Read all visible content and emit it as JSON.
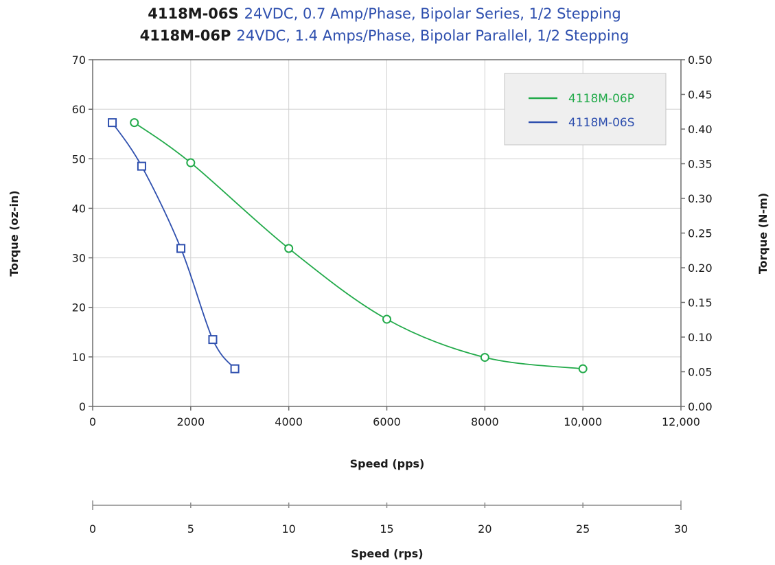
{
  "title_lines": [
    {
      "model": "4118M-06S",
      "desc": "24VDC, 0.7 Amp/Phase, Bipolar Series, 1/2 Stepping"
    },
    {
      "model": "4118M-06P",
      "desc": "24VDC, 1.4 Amps/Phase, Bipolar Parallel, 1/2 Stepping"
    }
  ],
  "colors": {
    "green": "#22aa4a",
    "blue": "#2e4fae",
    "grid": "#d0d0d0",
    "axis": "#6b6b6b"
  },
  "chart_data": {
    "type": "line",
    "xlabel": "Speed (pps)",
    "ylabel": "Torque (oz-in)",
    "y2label": "Torque (N-m)",
    "x2label": "Speed (rps)",
    "xlim": [
      0,
      12000
    ],
    "ylim": [
      0,
      70
    ],
    "y2lim": [
      0,
      0.5
    ],
    "x2lim": [
      0,
      30
    ],
    "x_ticks": [
      "0",
      "2000",
      "4000",
      "6000",
      "8000",
      "10,000",
      "12,000"
    ],
    "y_ticks": [
      "0",
      "10",
      "20",
      "30",
      "40",
      "50",
      "60",
      "70"
    ],
    "y2_ticks": [
      "0.00",
      "0.05",
      "0.10",
      "0.15",
      "0.20",
      "0.25",
      "0.30",
      "0.35",
      "0.40",
      "0.45",
      "0.50"
    ],
    "x2_ticks": [
      "0",
      "5",
      "10",
      "15",
      "20",
      "25",
      "30"
    ],
    "grid": true,
    "legend": {
      "position": "top-right"
    },
    "series": [
      {
        "name": "4118M-06P",
        "color": "#22aa4a",
        "marker": "circle",
        "x": [
          850,
          2000,
          4000,
          6000,
          8000,
          10000
        ],
        "y": [
          57.3,
          49.2,
          31.9,
          17.6,
          9.9,
          7.6
        ]
      },
      {
        "name": "4118M-06S",
        "color": "#2e4fae",
        "marker": "square",
        "x": [
          400,
          1000,
          1800,
          2450,
          2900
        ],
        "y": [
          57.3,
          48.5,
          31.9,
          13.5,
          7.6
        ]
      }
    ]
  }
}
